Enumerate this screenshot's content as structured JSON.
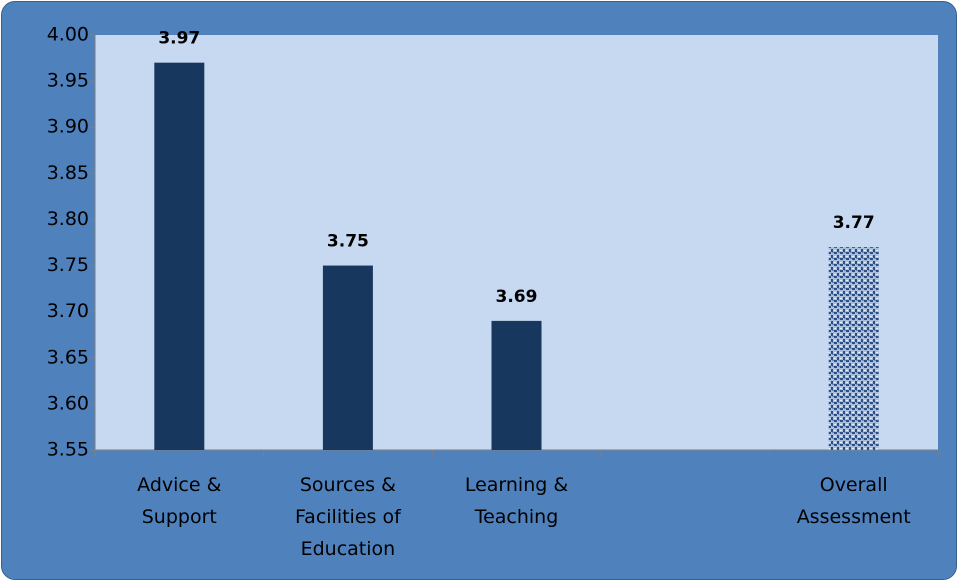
{
  "chart_data": {
    "type": "bar",
    "categories": [
      "Advice & Support",
      "Sources & Facilities of Education",
      "Learning & Teaching",
      null,
      "Overall Assessment"
    ],
    "values": [
      3.97,
      3.75,
      3.69,
      null,
      3.77
    ],
    "color": "#17375e",
    "highlight_color": "#4a6fa5",
    "ylim": [
      3.55,
      4.0
    ],
    "yticks": [
      {
        "value": 3.55,
        "label": "3.55"
      },
      {
        "value": 3.6,
        "label": "3.60"
      },
      {
        "value": 3.65,
        "label": "3.65"
      },
      {
        "value": 3.7,
        "label": "3.70"
      },
      {
        "value": 3.75,
        "label": "3.75"
      },
      {
        "value": 3.8,
        "label": "3.80"
      },
      {
        "value": 3.85,
        "label": "3.85"
      },
      {
        "value": 3.9,
        "label": "3.90"
      },
      {
        "value": 3.95,
        "label": "3.95"
      },
      {
        "value": 4.0,
        "label": "4.00"
      }
    ],
    "grid": false
  }
}
